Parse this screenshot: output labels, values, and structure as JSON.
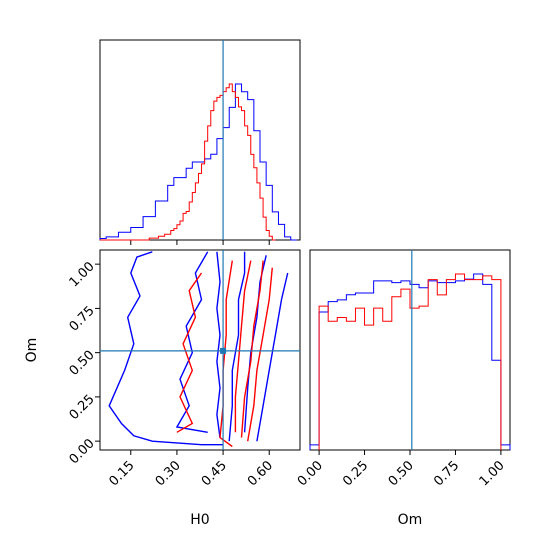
{
  "chart_data": [
    {
      "type": "histogram",
      "panel": "H0 marginal",
      "truth": 0.45,
      "xlim": [
        0.05,
        0.7
      ],
      "x_ticks": [
        "0.15",
        "0.30",
        "0.45",
        "0.60"
      ],
      "x_tick_values": [
        0.15,
        0.3,
        0.45,
        0.6
      ],
      "x_tick_labels_shown": false,
      "series": [
        {
          "color": "#0000ff",
          "bins_start": 0.05,
          "bin_width": 0.02,
          "values": [
            0.01,
            0.02,
            0.02,
            0.05,
            0.05,
            0.08,
            0.08,
            0.15,
            0.15,
            0.25,
            0.25,
            0.35,
            0.4,
            0.4,
            0.46,
            0.5,
            0.5,
            0.52,
            0.55,
            0.65,
            0.72,
            0.85,
            1.0,
            0.95,
            0.9,
            0.7,
            0.5,
            0.35,
            0.18,
            0.1,
            0.02,
            0.0
          ]
        },
        {
          "color": "#ff0000",
          "bins_start": 0.05,
          "bin_width": 0.01,
          "values": [
            0.0,
            0.0,
            0.0,
            0.0,
            0.0,
            0.0,
            0.0,
            0.0,
            0.0,
            0.0,
            0.0,
            0.0,
            0.0,
            0.0,
            0.0,
            0.0,
            0.01,
            0.01,
            0.01,
            0.02,
            0.02,
            0.03,
            0.03,
            0.05,
            0.06,
            0.08,
            0.1,
            0.14,
            0.15,
            0.2,
            0.25,
            0.3,
            0.35,
            0.4,
            0.52,
            0.6,
            0.68,
            0.73,
            0.75,
            0.76,
            0.78,
            0.8,
            0.82,
            0.78,
            0.75,
            0.7,
            0.68,
            0.6,
            0.55,
            0.45,
            0.38,
            0.3,
            0.22,
            0.12,
            0.05,
            0.02,
            0.0
          ]
        }
      ]
    },
    {
      "type": "contour",
      "panel": "H0 vs Om",
      "xlabel": "H0",
      "ylabel": "Om",
      "xlim": [
        0.05,
        0.7
      ],
      "ylim": [
        -0.05,
        1.08
      ],
      "x_ticks": [
        "0.15",
        "0.30",
        "0.45",
        "0.60"
      ],
      "x_tick_values": [
        0.15,
        0.3,
        0.45,
        0.6
      ],
      "y_ticks": [
        "0.00",
        "0.25",
        "0.50",
        "0.75",
        "1.00"
      ],
      "y_tick_values": [
        0.0,
        0.25,
        0.5,
        0.75,
        1.0
      ],
      "truth": {
        "H0": 0.45,
        "Om": 0.51
      },
      "series": [
        {
          "color": "#0000ff",
          "contours": [
            [
              [
                0.43,
                1.07
              ],
              [
                0.44,
                0.9
              ],
              [
                0.43,
                0.75
              ],
              [
                0.44,
                0.6
              ],
              [
                0.43,
                0.45
              ],
              [
                0.44,
                0.3
              ],
              [
                0.43,
                0.15
              ],
              [
                0.44,
                0.02
              ]
            ],
            [
              [
                0.52,
                1.07
              ],
              [
                0.52,
                0.95
              ],
              [
                0.5,
                0.8
              ],
              [
                0.5,
                0.6
              ],
              [
                0.48,
                0.4
              ],
              [
                0.48,
                0.2
              ],
              [
                0.47,
                0.0
              ]
            ],
            [
              [
                0.59,
                1.05
              ],
              [
                0.57,
                0.9
              ],
              [
                0.56,
                0.7
              ],
              [
                0.54,
                0.5
              ],
              [
                0.53,
                0.3
              ],
              [
                0.52,
                0.05
              ]
            ],
            [
              [
                0.66,
                0.95
              ],
              [
                0.64,
                0.8
              ],
              [
                0.62,
                0.6
              ],
              [
                0.6,
                0.4
              ],
              [
                0.58,
                0.2
              ],
              [
                0.56,
                0.0
              ]
            ],
            [
              [
                0.22,
                1.07
              ],
              [
                0.17,
                1.04
              ],
              [
                0.15,
                0.95
              ],
              [
                0.18,
                0.82
              ],
              [
                0.14,
                0.7
              ],
              [
                0.16,
                0.55
              ],
              [
                0.13,
                0.4
              ],
              [
                0.08,
                0.2
              ],
              [
                0.12,
                0.1
              ],
              [
                0.16,
                0.03
              ],
              [
                0.22,
                0.0
              ],
              [
                0.38,
                -0.02
              ],
              [
                0.45,
                -0.02
              ]
            ],
            [
              [
                0.4,
                1.07
              ],
              [
                0.36,
                0.95
              ],
              [
                0.38,
                0.8
              ],
              [
                0.33,
                0.65
              ],
              [
                0.35,
                0.5
              ],
              [
                0.31,
                0.35
              ],
              [
                0.34,
                0.2
              ],
              [
                0.3,
                0.08
              ],
              [
                0.4,
                0.05
              ]
            ]
          ]
        },
        {
          "color": "#ff0000",
          "contours": [
            [
              [
                0.48,
                1.02
              ],
              [
                0.46,
                0.8
              ],
              [
                0.46,
                0.6
              ],
              [
                0.45,
                0.4
              ],
              [
                0.45,
                0.2
              ],
              [
                0.44,
                0.02
              ],
              [
                0.48,
                -0.03
              ]
            ],
            [
              [
                0.54,
                1.02
              ],
              [
                0.52,
                0.85
              ],
              [
                0.51,
                0.65
              ],
              [
                0.5,
                0.45
              ],
              [
                0.49,
                0.25
              ],
              [
                0.49,
                0.05
              ]
            ],
            [
              [
                0.58,
                1.02
              ],
              [
                0.57,
                0.85
              ],
              [
                0.55,
                0.65
              ],
              [
                0.54,
                0.45
              ],
              [
                0.52,
                0.25
              ],
              [
                0.51,
                0.02
              ]
            ],
            [
              [
                0.61,
                0.98
              ],
              [
                0.6,
                0.8
              ],
              [
                0.58,
                0.6
              ],
              [
                0.56,
                0.4
              ],
              [
                0.55,
                0.2
              ],
              [
                0.53,
                0.0
              ]
            ],
            [
              [
                0.38,
                0.95
              ],
              [
                0.34,
                0.85
              ],
              [
                0.36,
                0.7
              ],
              [
                0.32,
                0.55
              ],
              [
                0.35,
                0.4
              ],
              [
                0.31,
                0.25
              ],
              [
                0.35,
                0.1
              ],
              [
                0.3,
                0.05
              ]
            ]
          ]
        }
      ]
    },
    {
      "type": "histogram",
      "panel": "Om marginal",
      "xlabel": "Om",
      "truth": 0.51,
      "xlim": [
        -0.05,
        1.05
      ],
      "x_ticks": [
        "0.00",
        "0.25",
        "0.50",
        "0.75",
        "1.00"
      ],
      "x_tick_values": [
        0.0,
        0.25,
        0.5,
        0.75,
        1.0
      ],
      "series": [
        {
          "color": "#0000ff",
          "bins_start": -0.05,
          "bin_width": 0.05,
          "values": [
            0.03,
            0.8,
            0.86,
            0.87,
            0.9,
            0.91,
            0.91,
            0.98,
            0.98,
            0.97,
            0.98,
            0.96,
            0.94,
            0.98,
            0.97,
            0.97,
            0.98,
            0.99,
            1.02,
            0.96,
            0.52,
            0.03
          ]
        },
        {
          "color": "#ff0000",
          "bins_start": 0.0,
          "bin_width": 0.05,
          "values": [
            0.76,
            0.68,
            0.7,
            0.68,
            0.75,
            0.66,
            0.75,
            0.68,
            0.81,
            0.85,
            0.75,
            0.76,
            0.9,
            0.82,
            0.9,
            0.93,
            0.9,
            0.9,
            0.92,
            0.9
          ]
        }
      ]
    }
  ]
}
